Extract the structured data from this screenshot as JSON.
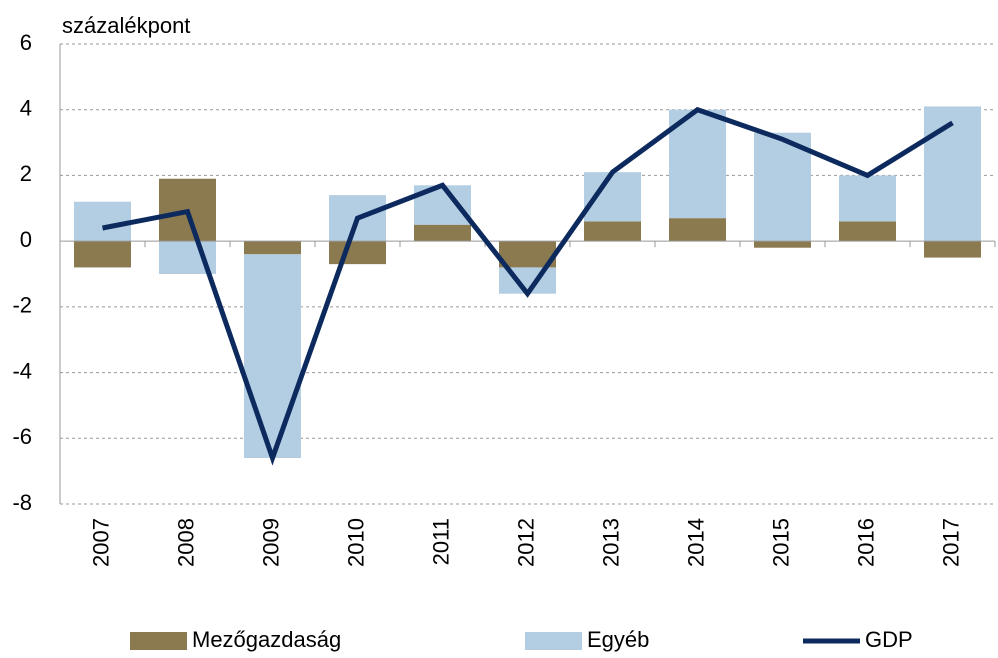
{
  "chart_data": {
    "type": "bar_line",
    "y_label": "százalékpont",
    "categories": [
      "2007",
      "2008",
      "2009",
      "2010",
      "2011",
      "2012",
      "2013",
      "2014",
      "2015",
      "2016",
      "2017"
    ],
    "series": [
      {
        "name": "Mezőgazdaság",
        "color": "#8b7a50",
        "values": [
          -0.8,
          1.9,
          -0.4,
          -0.7,
          0.5,
          -0.8,
          0.6,
          0.7,
          -0.2,
          0.6,
          -0.5
        ]
      },
      {
        "name": "Egyéb",
        "color": "#b3cde3",
        "values": [
          1.2,
          -1.0,
          -6.2,
          1.4,
          1.2,
          -0.8,
          1.5,
          3.3,
          3.3,
          1.4,
          4.1
        ]
      },
      {
        "name": "GDP",
        "color": "#0d2a5e",
        "type": "line",
        "values": [
          0.4,
          0.9,
          -6.6,
          0.7,
          1.7,
          -1.6,
          2.1,
          4.0,
          3.1,
          2.0,
          3.6
        ]
      }
    ],
    "ylim": [
      -8,
      6
    ],
    "yticks": [
      -8,
      -6,
      -4,
      -2,
      0,
      2,
      4,
      6
    ],
    "grid": true,
    "legend": "bottom"
  }
}
